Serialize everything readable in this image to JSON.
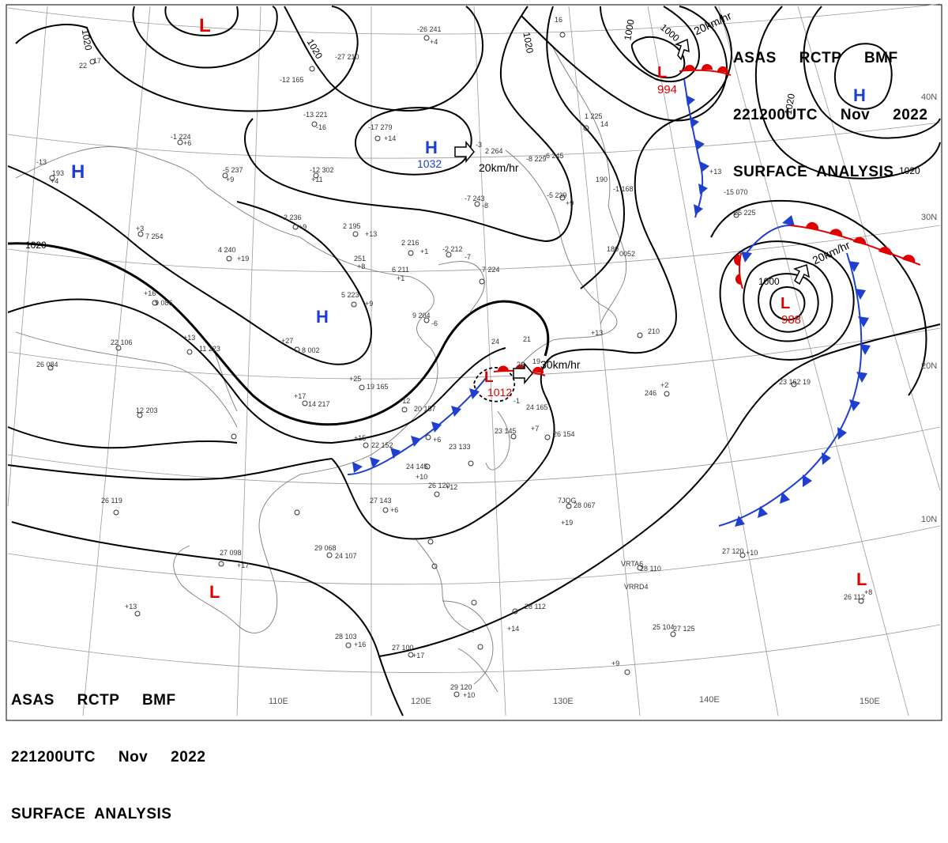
{
  "header": {
    "line1": "ASAS     RCTP     BMF",
    "line2": "221200UTC     Nov     2022",
    "line3": "SURFACE  ANALYSIS"
  },
  "latitude_labels": [
    "40N",
    "30N",
    "20N",
    "10N"
  ],
  "longitude_labels": [
    "110E",
    "120E",
    "130E",
    "140E",
    "150E"
  ],
  "pressure_centers": [
    {
      "type": "L",
      "value": "",
      "color": "#e00000"
    },
    {
      "type": "H",
      "value": "",
      "color": "#1f3fd0"
    },
    {
      "type": "H",
      "value": "1032",
      "color": "#1f3fd0"
    },
    {
      "type": "H",
      "value": "",
      "color": "#1f3fd0"
    },
    {
      "type": "L",
      "value": "994",
      "color": "#e00000"
    },
    {
      "type": "H",
      "value": "",
      "color": "#1f3fd0"
    },
    {
      "type": "L",
      "value": "988",
      "color": "#e00000"
    },
    {
      "type": "L",
      "value": "1012",
      "color": "#e00000"
    },
    {
      "type": "L",
      "value": "",
      "color": "#e00000"
    },
    {
      "type": "L",
      "value": "",
      "color": "#e00000"
    }
  ],
  "movement_labels": [
    "20km/hr",
    "20km/hr",
    "20km/hr",
    "30km/hr"
  ],
  "isobar_labels": [
    "1020",
    "1020",
    "1020",
    "1020",
    "1000",
    "1000",
    "1000",
    "1020",
    "1020"
  ],
  "station_plots": [
    "-26  241",
    "+4",
    "-27  210",
    "-12  165",
    "-13  221",
    "-16",
    "-17  279",
    "+14",
    "-12  302",
    "+11",
    "-5  237",
    "+9",
    "-1  224",
    "+6",
    "-13",
    "193",
    "+4",
    "-2  236",
    "+9",
    "2  195",
    "+13",
    "251",
    "+8",
    "2  216",
    "+1",
    "-2  212",
    "-7",
    "4  240",
    "+19",
    "6  211",
    "+1",
    "7  224",
    "5  223",
    "+9",
    "9  204",
    "-6",
    "-7  243",
    "-8",
    "-5  239",
    "+9",
    "-8  229",
    "-6  245",
    "-3",
    "2  264",
    "+3",
    "7  254",
    "+16",
    "9  086",
    "+13",
    "11  223",
    "+27",
    "8  002",
    "22  106",
    "26  084",
    "12  203",
    "+17",
    "14  217",
    "+25",
    "19  165",
    "+12",
    "20  157",
    "+15",
    "22  152",
    "-1",
    "24  165",
    "+7",
    "26  154",
    "23  145",
    "+6",
    "23  133",
    "24  145",
    "+10",
    "26  120",
    "+12",
    "27  143",
    "+6",
    "7JQG",
    "28  067",
    "+19",
    "27  098",
    "+17",
    "29  068",
    "24  107",
    "26  119",
    "+13",
    "28  103",
    "+16",
    "27  100",
    "+17",
    "29  120",
    "+10",
    "VRTA6",
    "28  110",
    "VRRD4",
    "28  112",
    "+14",
    "25  104",
    "27  125",
    "+9",
    "27  120",
    "+10",
    "26  112",
    "+8",
    "23  162",
    "19",
    "246",
    "+2",
    "210",
    "+13",
    "180",
    "0052",
    "190",
    "-1  168",
    "+13",
    "-15  070",
    "-25  225",
    "1  225",
    "14",
    "16",
    "17",
    "22",
    "24",
    "26",
    "21",
    "19"
  ],
  "colors": {
    "isobar": "#000000",
    "cold_front": "#1f3fd0",
    "warm_front": "#e00000",
    "low_marker": "#e00000",
    "high_marker": "#1f3fd0",
    "coastline": "#7a7a7a",
    "graticule": "#9a9a9a",
    "station_text": "#333333"
  }
}
